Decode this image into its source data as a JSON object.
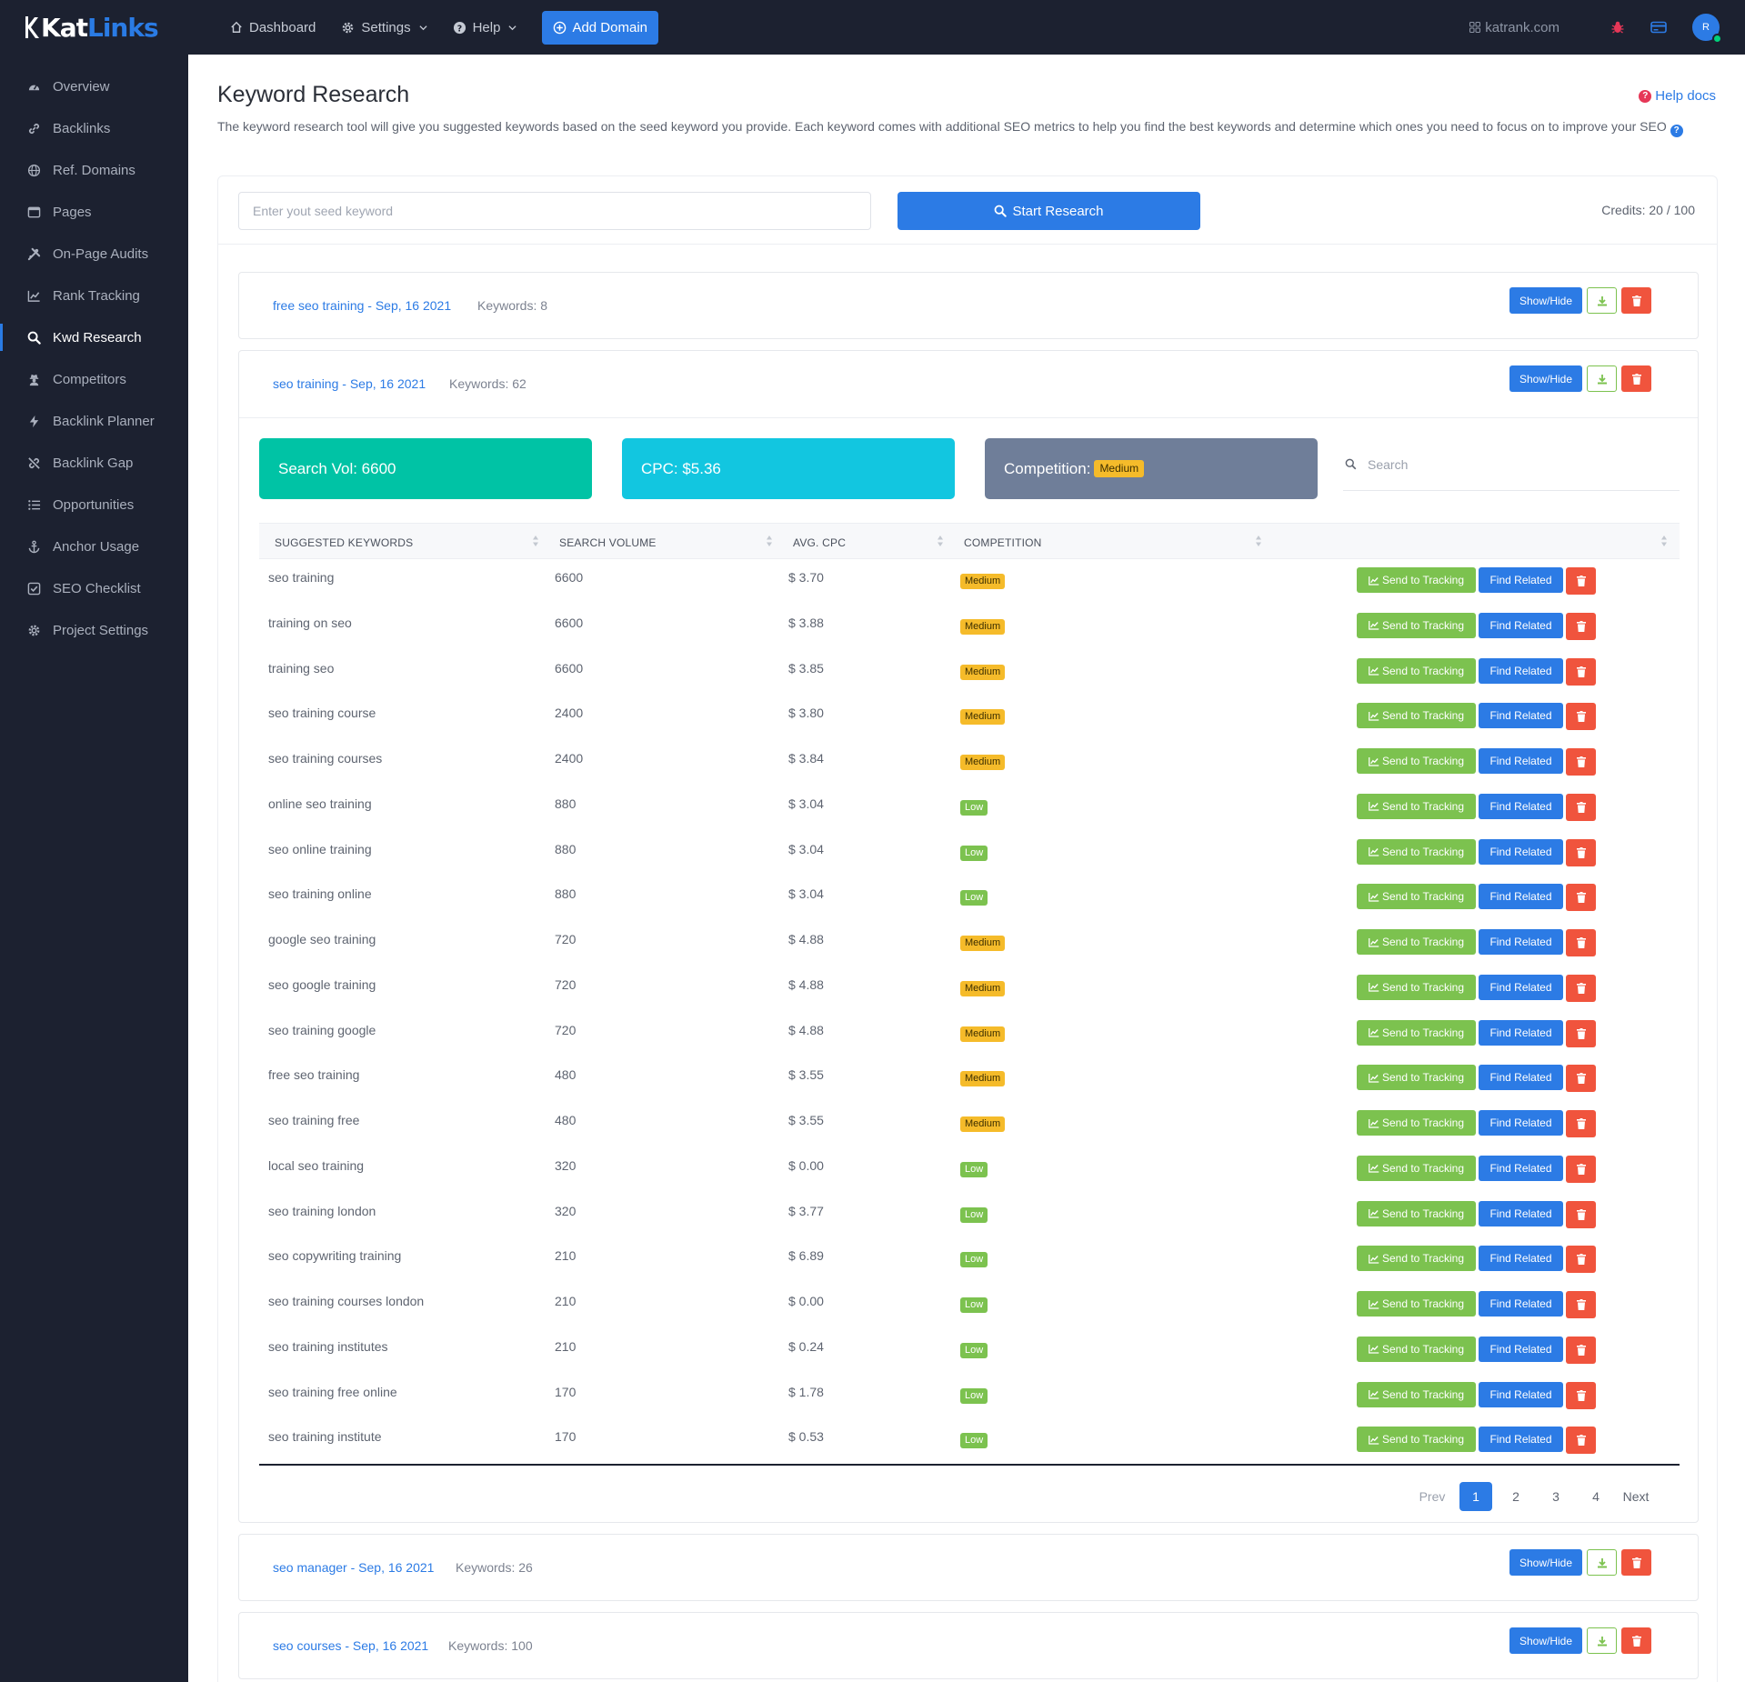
{
  "app": {
    "logo_part1": "Kat",
    "logo_part2": "Links"
  },
  "sidebar": {
    "items": [
      {
        "label": "Overview",
        "icon": "gauge-icon"
      },
      {
        "label": "Backlinks",
        "icon": "link-icon"
      },
      {
        "label": "Ref. Domains",
        "icon": "globe-icon"
      },
      {
        "label": "Pages",
        "icon": "window-icon"
      },
      {
        "label": "On-Page Audits",
        "icon": "tools-icon"
      },
      {
        "label": "Rank Tracking",
        "icon": "chart-line-icon"
      },
      {
        "label": "Kwd Research",
        "icon": "search-icon",
        "active": true
      },
      {
        "label": "Competitors",
        "icon": "user-secret-icon"
      },
      {
        "label": "Backlink Planner",
        "icon": "bolt-icon"
      },
      {
        "label": "Backlink Gap",
        "icon": "unlink-icon"
      },
      {
        "label": "Opportunities",
        "icon": "list-icon"
      },
      {
        "label": "Anchor Usage",
        "icon": "anchor-icon"
      },
      {
        "label": "SEO Checklist",
        "icon": "checkbox-icon"
      },
      {
        "label": "Project Settings",
        "icon": "gear-icon"
      }
    ]
  },
  "topbar": {
    "dashboard": "Dashboard",
    "settings": "Settings",
    "help": "Help",
    "add_domain": "Add Domain",
    "domain": "katrank.com",
    "avatar_initial": "R"
  },
  "page": {
    "title": "Keyword Research",
    "help_docs": "Help docs",
    "intro": "The keyword research tool will give you suggested keywords based on the seed keyword you provide. Each keyword comes with additional SEO metrics to help you find the best keywords and determine which ones you need to focus on to improve your SEO"
  },
  "research": {
    "placeholder": "Enter yout seed keyword",
    "button": "Start Research",
    "credits": "Credits: 20 / 100"
  },
  "panels": [
    {
      "title": "free seo training - Sep, 16 2021",
      "count": "Keywords: 8"
    },
    {
      "title": "seo training - Sep, 16 2021",
      "count": "Keywords: 62"
    },
    {
      "title": "seo manager - Sep, 16 2021",
      "count": "Keywords: 26"
    },
    {
      "title": "seo courses - Sep, 16 2021",
      "count": "Keywords: 100"
    }
  ],
  "panel_actions": {
    "show_hide": "Show/Hide"
  },
  "stats": {
    "search_vol": "Search Vol: 6600",
    "cpc": "CPC: $5.36",
    "competition_label": "Competition:",
    "competition_value": "Medium"
  },
  "table": {
    "search_placeholder": "Search",
    "headers": [
      "SUGGESTED KEYWORDS",
      "SEARCH VOLUME",
      "AVG. CPC",
      "COMPETITION"
    ],
    "send_label": "Send to Tracking",
    "find_label": "Find Related",
    "rows": [
      {
        "keyword": "seo training",
        "volume": "6600",
        "cpc": "$ 3.70",
        "competition": "Medium"
      },
      {
        "keyword": "training on seo",
        "volume": "6600",
        "cpc": "$ 3.88",
        "competition": "Medium"
      },
      {
        "keyword": "training seo",
        "volume": "6600",
        "cpc": "$ 3.85",
        "competition": "Medium"
      },
      {
        "keyword": "seo training course",
        "volume": "2400",
        "cpc": "$ 3.80",
        "competition": "Medium"
      },
      {
        "keyword": "seo training courses",
        "volume": "2400",
        "cpc": "$ 3.84",
        "competition": "Medium"
      },
      {
        "keyword": "online seo training",
        "volume": "880",
        "cpc": "$ 3.04",
        "competition": "Low"
      },
      {
        "keyword": "seo online training",
        "volume": "880",
        "cpc": "$ 3.04",
        "competition": "Low"
      },
      {
        "keyword": "seo training online",
        "volume": "880",
        "cpc": "$ 3.04",
        "competition": "Low"
      },
      {
        "keyword": "google seo training",
        "volume": "720",
        "cpc": "$ 4.88",
        "competition": "Medium"
      },
      {
        "keyword": "seo google training",
        "volume": "720",
        "cpc": "$ 4.88",
        "competition": "Medium"
      },
      {
        "keyword": "seo training google",
        "volume": "720",
        "cpc": "$ 4.88",
        "competition": "Medium"
      },
      {
        "keyword": "free seo training",
        "volume": "480",
        "cpc": "$ 3.55",
        "competition": "Medium"
      },
      {
        "keyword": "seo training free",
        "volume": "480",
        "cpc": "$ 3.55",
        "competition": "Medium"
      },
      {
        "keyword": "local seo training",
        "volume": "320",
        "cpc": "$ 0.00",
        "competition": "Low"
      },
      {
        "keyword": "seo training london",
        "volume": "320",
        "cpc": "$ 3.77",
        "competition": "Low"
      },
      {
        "keyword": "seo copywriting training",
        "volume": "210",
        "cpc": "$ 6.89",
        "competition": "Low"
      },
      {
        "keyword": "seo training courses london",
        "volume": "210",
        "cpc": "$ 0.00",
        "competition": "Low"
      },
      {
        "keyword": "seo training institutes",
        "volume": "210",
        "cpc": "$ 0.24",
        "competition": "Low"
      },
      {
        "keyword": "seo training free online",
        "volume": "170",
        "cpc": "$ 1.78",
        "competition": "Low"
      },
      {
        "keyword": "seo training institute",
        "volume": "170",
        "cpc": "$ 0.53",
        "competition": "Low"
      }
    ]
  },
  "pagination": {
    "prev": "Prev",
    "pages": [
      "1",
      "2",
      "3",
      "4"
    ],
    "current": "1",
    "next": "Next"
  },
  "colors": {
    "brand": "#2c7be5",
    "sidebar_bg": "#1c2130",
    "success": "#7cc24f",
    "danger": "#f0543d",
    "warning": "#f5bb2a",
    "teal": "#00c3a5",
    "cyan": "#12c6e0",
    "slate": "#6f7e99"
  }
}
